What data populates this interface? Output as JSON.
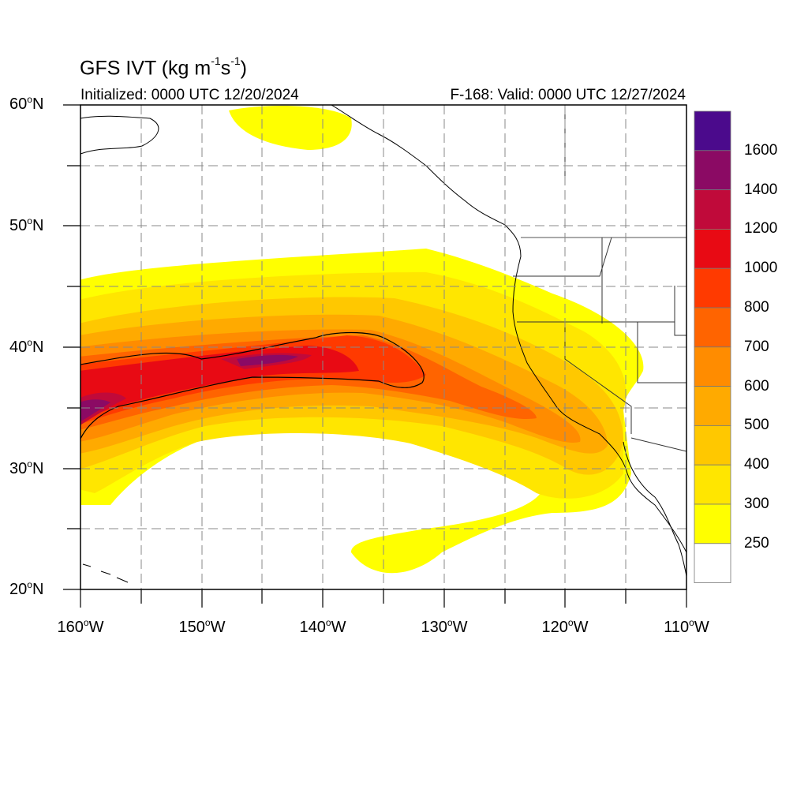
{
  "title": {
    "prefix": "GFS IVT (kg m",
    "exp1": "-1",
    "mid": "s",
    "exp2": "-1",
    "suffix": ")"
  },
  "subtitle_left": "Initialized: 0000 UTC 12/20/2024",
  "subtitle_right": "F-168: Valid: 0000 UTC 12/27/2024",
  "lat_labels": [
    {
      "value": "60",
      "unit": "N"
    },
    {
      "value": "50",
      "unit": "N"
    },
    {
      "value": "40",
      "unit": "N"
    },
    {
      "value": "30",
      "unit": "N"
    },
    {
      "value": "20",
      "unit": "N"
    }
  ],
  "lon_labels": [
    {
      "value": "160",
      "unit": "W"
    },
    {
      "value": "150",
      "unit": "W"
    },
    {
      "value": "140",
      "unit": "W"
    },
    {
      "value": "130",
      "unit": "W"
    },
    {
      "value": "120",
      "unit": "W"
    },
    {
      "value": "110",
      "unit": "W"
    }
  ],
  "colorbar": {
    "levels": [
      "1600",
      "1400",
      "1200",
      "1000",
      "800",
      "700",
      "600",
      "500",
      "400",
      "300",
      "250"
    ],
    "colors_top_to_bottom": [
      "#4b0a8c",
      "#8b0a64",
      "#c00a3a",
      "#e80a14",
      "#ff3a00",
      "#ff6400",
      "#ff8c00",
      "#ffaa00",
      "#ffc800",
      "#ffe600",
      "#ffff00",
      "#ffffff"
    ]
  }
}
